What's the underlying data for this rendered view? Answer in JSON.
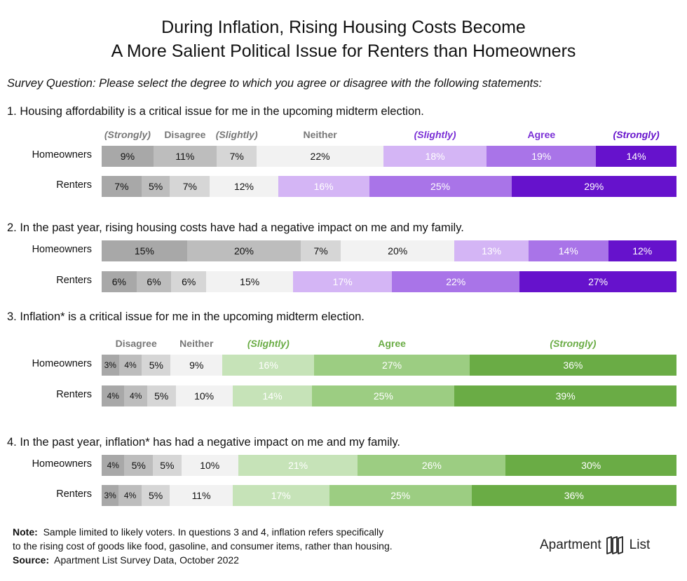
{
  "title_line1": "During Inflation, Rising Housing Costs Become",
  "title_line2": "A More Salient Political Issue for Renters than Homeowners",
  "subtitle": "Survey Question: Please select the degree to which you agree or disagree with the following statements:",
  "colors": {
    "neutral": [
      "#a8a8a8",
      "#bdbdbd",
      "#d6d6d6",
      "#f2f2f2"
    ],
    "purple": [
      "#d4b5f5",
      "#a974e8",
      "#6612cc"
    ],
    "green": [
      "#c6e3b8",
      "#9ccd82",
      "#6aac45"
    ],
    "purple_header": [
      "#6612cc",
      "#7a2fd6",
      "#6612cc"
    ],
    "green_header": "#6aac45"
  },
  "chart_data": [
    {
      "type": "stacked-bar",
      "question": "1. Housing affordability is a critical issue for me in the upcoming midterm election.",
      "scheme": "purple",
      "segment_count": 7,
      "headers": [
        "(Strongly)",
        "Disagree",
        "(Slightly)",
        "Neither",
        "(Slightly)",
        "Agree",
        "(Strongly)"
      ],
      "rows": [
        {
          "label": "Homeowners",
          "values": [
            9,
            11,
            7,
            22,
            18,
            19,
            14
          ],
          "labels": [
            "9%",
            "11%",
            "7%",
            "22%",
            "18%",
            "19%",
            "14%"
          ]
        },
        {
          "label": "Renters",
          "values": [
            7,
            5,
            7,
            12,
            16,
            25,
            29
          ],
          "labels": [
            "7%",
            "5%",
            "7%",
            "12%",
            "16%",
            "25%",
            "29%"
          ]
        }
      ]
    },
    {
      "type": "stacked-bar",
      "question": "2. In the past year, rising housing costs have had a negative impact on me and my family.",
      "scheme": "purple",
      "segment_count": 7,
      "rows": [
        {
          "label": "Homeowners",
          "values": [
            15,
            20,
            7,
            20,
            13,
            14,
            12
          ],
          "labels": [
            "15%",
            "20%",
            "7%",
            "20%",
            "13%",
            "14%",
            "12%"
          ]
        },
        {
          "label": "Renters",
          "values": [
            6,
            6,
            6,
            15,
            17,
            22,
            27
          ],
          "labels": [
            "6%",
            "6%",
            "6%",
            "15%",
            "17%",
            "22%",
            "27%"
          ]
        }
      ]
    },
    {
      "type": "stacked-bar",
      "question": "3. Inflation* is a critical issue for me in the upcoming midterm election.",
      "scheme": "green",
      "segment_count": 7,
      "headers": [
        "Disagree",
        "Neither",
        "(Slightly)",
        "Agree",
        "(Strongly)"
      ],
      "rows": [
        {
          "label": "Homeowners",
          "values": [
            3,
            4,
            5,
            9,
            16,
            27,
            36
          ],
          "labels": [
            "3%",
            "4%",
            "5%",
            "9%",
            "16%",
            "27%",
            "36%"
          ]
        },
        {
          "label": "Renters",
          "values": [
            4,
            4,
            5,
            10,
            14,
            25,
            39
          ],
          "labels": [
            "4%",
            "4%",
            "5%",
            "10%",
            "14%",
            "25%",
            "39%"
          ]
        }
      ]
    },
    {
      "type": "stacked-bar",
      "question": "4. In the past year, inflation* has had a negative impact on me and my family.",
      "scheme": "green",
      "segment_count": 7,
      "rows": [
        {
          "label": "Homeowners",
          "values": [
            4,
            5,
            5,
            10,
            21,
            26,
            30
          ],
          "labels": [
            "4%",
            "5%",
            "5%",
            "10%",
            "21%",
            "26%",
            "30%"
          ]
        },
        {
          "label": "Renters",
          "values": [
            3,
            4,
            5,
            11,
            17,
            25,
            36
          ],
          "labels": [
            "3%",
            "4%",
            "5%",
            "11%",
            "17%",
            "25%",
            "36%"
          ]
        }
      ]
    }
  ],
  "footer": {
    "note_label": "Note:",
    "note_line1": "Sample limited to likely voters. In questions 3 and 4, inflation refers specifically",
    "note_line2": "to the rising cost of goods like food, gasoline, and consumer items, rather than housing.",
    "source_label": "Source:",
    "source_text": "Apartment List Survey Data, October 2022"
  },
  "logo": {
    "word1": "Apartment",
    "word2": "List",
    "icon": "apartment-list-logo-icon"
  }
}
